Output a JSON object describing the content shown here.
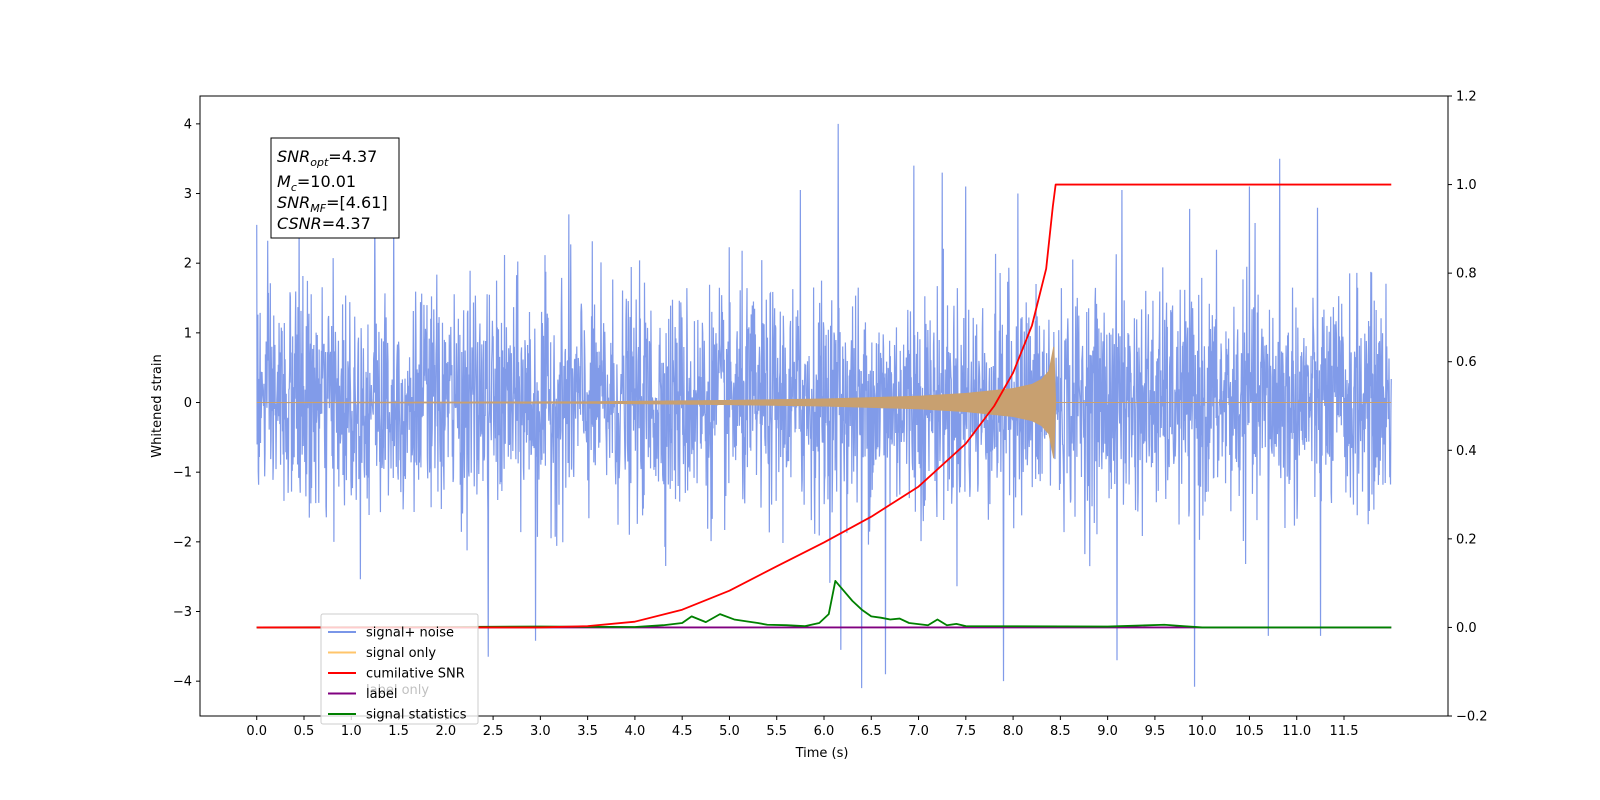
{
  "chart_data": {
    "type": "line",
    "xlabel": "Time (s)",
    "ylabel_left": "Whitened strain",
    "ylabel_right": "",
    "xlim": [
      -0.6,
      12.6
    ],
    "ylim_left": [
      -4.5,
      4.4
    ],
    "ylim_right": [
      -0.2,
      1.2
    ],
    "x_ticks": [
      "0.0",
      "0.5",
      "1.0",
      "1.5",
      "2.0",
      "2.5",
      "3.0",
      "3.5",
      "4.0",
      "4.5",
      "5.0",
      "5.5",
      "6.0",
      "6.5",
      "7.0",
      "7.5",
      "8.0",
      "8.5",
      "9.0",
      "9.5",
      "10.0",
      "10.5",
      "11.0",
      "11.5"
    ],
    "y_ticks_left": [
      "−4",
      "−3",
      "−2",
      "−1",
      "0",
      "1",
      "2",
      "3",
      "4"
    ],
    "y_ticks_right": [
      "−0.2",
      "0.0",
      "0.2",
      "0.4",
      "0.6",
      "0.8",
      "1.0",
      "1.2"
    ],
    "grid": false,
    "legend_position": "bottom-left",
    "legend": [
      {
        "label": "signal+ noise",
        "color": "#7a96e8"
      },
      {
        "label": "signal only",
        "color": "#ffc56b"
      },
      {
        "label": "cumilative SNR",
        "color": "#ff0000"
      },
      {
        "label": "label",
        "color": "#800080"
      },
      {
        "label": "signal statistics",
        "color": "#008000"
      }
    ],
    "hidden_legend_text": "label only",
    "annotation": {
      "snr_opt": {
        "base": "SNR",
        "sub": "opt",
        "value": "=4.37"
      },
      "mc": {
        "base": "M",
        "sub": "c",
        "value": "=10.01"
      },
      "snr_mf": {
        "base": "SNR",
        "sub": "MF",
        "value": "=[4.61]"
      },
      "csnr": {
        "base": "CSNR",
        "value": "=4.37"
      }
    },
    "series": [
      {
        "name": "signal+ noise",
        "axis": "left",
        "color": "#7a96e8",
        "x_range": [
          0.0,
          12.0
        ],
        "envelope_typical": 1.7,
        "peaks": [
          {
            "x": 0.0,
            "y": 2.55
          },
          {
            "x": 0.45,
            "y": 2.9
          },
          {
            "x": 1.25,
            "y": 3.0
          },
          {
            "x": 1.45,
            "y": 2.9
          },
          {
            "x": 2.45,
            "y": -3.65
          },
          {
            "x": 2.95,
            "y": -3.42
          },
          {
            "x": 3.3,
            "y": 2.7
          },
          {
            "x": 5.75,
            "y": 3.05
          },
          {
            "x": 6.15,
            "y": 4.0
          },
          {
            "x": 6.18,
            "y": -3.55
          },
          {
            "x": 6.4,
            "y": -4.1
          },
          {
            "x": 6.65,
            "y": -3.9
          },
          {
            "x": 6.95,
            "y": 3.4
          },
          {
            "x": 7.25,
            "y": 3.3
          },
          {
            "x": 7.5,
            "y": 3.1
          },
          {
            "x": 7.9,
            "y": -4.0
          },
          {
            "x": 8.05,
            "y": 3.0
          },
          {
            "x": 9.1,
            "y": -3.7
          },
          {
            "x": 9.15,
            "y": 3.05
          },
          {
            "x": 9.92,
            "y": -4.08
          },
          {
            "x": 10.5,
            "y": 3.1
          },
          {
            "x": 10.7,
            "y": -3.35
          },
          {
            "x": 10.82,
            "y": 3.5
          },
          {
            "x": 11.25,
            "y": -3.35
          }
        ]
      },
      {
        "name": "signal only",
        "axis": "left",
        "color": "#c8a070",
        "x": [
          0,
          3.5,
          5.0,
          6.0,
          7.0,
          7.5,
          8.0,
          8.2,
          8.3,
          8.38,
          8.43,
          8.45,
          12.0
        ],
        "amplitude": [
          0.0,
          0.01,
          0.03,
          0.05,
          0.09,
          0.13,
          0.2,
          0.26,
          0.33,
          0.45,
          0.8,
          0.0,
          0.0
        ]
      },
      {
        "name": "cumilative SNR",
        "axis": "right",
        "color": "#ff0000",
        "x": [
          0,
          3.0,
          3.5,
          4.0,
          4.5,
          5.0,
          5.5,
          6.0,
          6.5,
          7.0,
          7.5,
          7.8,
          8.0,
          8.2,
          8.35,
          8.42,
          8.45,
          12.0
        ],
        "y": [
          0.0,
          0.0,
          0.003,
          0.013,
          0.04,
          0.083,
          0.138,
          0.192,
          0.25,
          0.318,
          0.415,
          0.5,
          0.575,
          0.682,
          0.81,
          0.95,
          1.0,
          1.0
        ]
      },
      {
        "name": "label",
        "axis": "right",
        "color": "#800080",
        "x": [
          0,
          12.0
        ],
        "y": [
          0.0,
          0.0
        ]
      },
      {
        "name": "signal statistics",
        "axis": "right",
        "color": "#008000",
        "x": [
          0,
          2.0,
          3.0,
          4.0,
          4.3,
          4.5,
          4.6,
          4.75,
          4.9,
          5.05,
          5.2,
          5.3,
          5.4,
          5.6,
          5.8,
          5.95,
          6.05,
          6.12,
          6.2,
          6.3,
          6.4,
          6.5,
          6.6,
          6.7,
          6.8,
          6.9,
          7.1,
          7.2,
          7.3,
          7.4,
          7.5,
          9.0,
          9.6,
          9.8,
          10.0,
          12.0
        ],
        "y": [
          0.0,
          0.001,
          0.002,
          0.001,
          0.005,
          0.01,
          0.025,
          0.012,
          0.03,
          0.018,
          0.013,
          0.01,
          0.006,
          0.005,
          0.003,
          0.01,
          0.03,
          0.105,
          0.085,
          0.06,
          0.04,
          0.025,
          0.022,
          0.018,
          0.02,
          0.01,
          0.005,
          0.018,
          0.005,
          0.008,
          0.003,
          0.002,
          0.006,
          0.003,
          0.0,
          0.0
        ]
      }
    ]
  }
}
